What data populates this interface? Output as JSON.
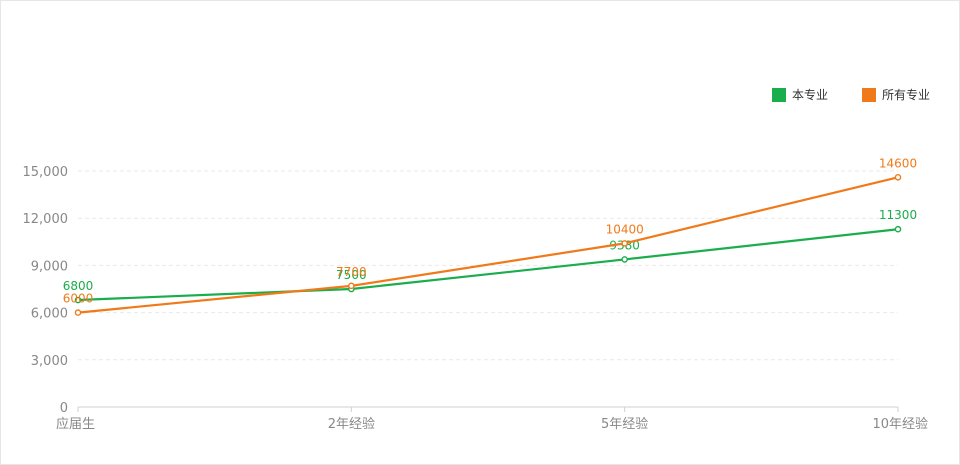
{
  "chart_data": {
    "type": "line",
    "categories": [
      "应届生",
      "2年经验",
      "5年经验",
      "10年经验"
    ],
    "ylim": [
      0,
      15000
    ],
    "yticks": [
      "0",
      "3,000",
      "6,000",
      "9,000",
      "12,000",
      "15,000"
    ],
    "ytick_values": [
      0,
      3000,
      6000,
      9000,
      12000,
      15000
    ],
    "grid": true,
    "legend_position": "top-right",
    "series": [
      {
        "name": "本专业",
        "color": "#1aad4b",
        "values": [
          6800,
          7500,
          9380,
          11300
        ]
      },
      {
        "name": "所有专业",
        "color": "#f07a1a",
        "values": [
          6000,
          7700,
          10400,
          14600
        ]
      }
    ]
  }
}
